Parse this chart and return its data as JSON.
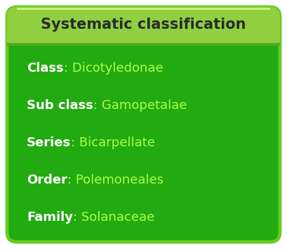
{
  "title": "Systematic classification",
  "title_bg_color": "#90d040",
  "title_text_color": "#2a2a2a",
  "body_bg_color": "#22aa11",
  "outer_border_color": "#66cc22",
  "outer_bg_color": "#ffffff",
  "rows": [
    {
      "bold": "Class",
      "normal": ": Dicotyledonae"
    },
    {
      "bold": "Sub class",
      "normal": ": Gamopetalae"
    },
    {
      "bold": "Series",
      "normal": ": Bicarpellate"
    },
    {
      "bold": "Order",
      "normal": ": Polemoneales"
    },
    {
      "bold": "Family",
      "normal": ": Solanaceae"
    }
  ],
  "bold_color": "#ffffff",
  "normal_color": "#aaff44",
  "font_size_title": 15,
  "font_size_body": 13,
  "fig_width": 4.09,
  "fig_height": 3.54,
  "dpi": 100
}
